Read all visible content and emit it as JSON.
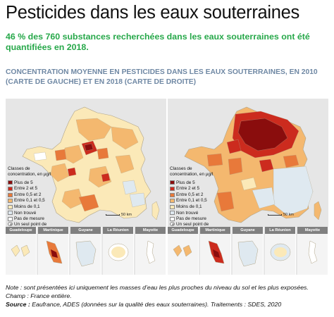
{
  "title": "Pesticides dans les eaux souterraines",
  "subtitle": "46 % des 760 substances recherchées dans les eaux souterraines ont été quantifiées en 2018.",
  "section_title": "Concentration moyenne en pesticides dans les eaux souterraines, en 2010 (carte de gauche) et en 2018 (carte de droite)",
  "legend": {
    "title": "Classes de concentration, en µg/l",
    "items": [
      {
        "label": "Plus de 5",
        "color": "#8a0d0d"
      },
      {
        "label": "Entre 2 et 5",
        "color": "#cc2b1e"
      },
      {
        "label": "Entre 0,5 et 2",
        "color": "#e8793a"
      },
      {
        "label": "Entre 0,1 et 0,5",
        "color": "#f4b86f"
      },
      {
        "label": "Moins de 0,1",
        "color": "#fbe9b8"
      },
      {
        "label": "Non trouvé",
        "color": "#dfe9f0"
      },
      {
        "label": "Pas de mesure",
        "color": "#ffffff"
      },
      {
        "label": "Un seul point de mesure",
        "color": "dot"
      }
    ]
  },
  "scale_label": "50 km",
  "overseas": [
    "Guadeloupe",
    "Martinique",
    "Guyane",
    "La Réunion",
    "Mayotte"
  ],
  "footer": {
    "note": "Note : sont présentées ici uniquement les masses d’eau les plus proches du niveau du sol et les plus exposées.",
    "champ": "Champ : France entière.",
    "source_label": "Source :",
    "source_text": "Eaufrance, ADES (données sur la qualité des eaux souterraines). Traitements : SDES, 2020"
  }
}
